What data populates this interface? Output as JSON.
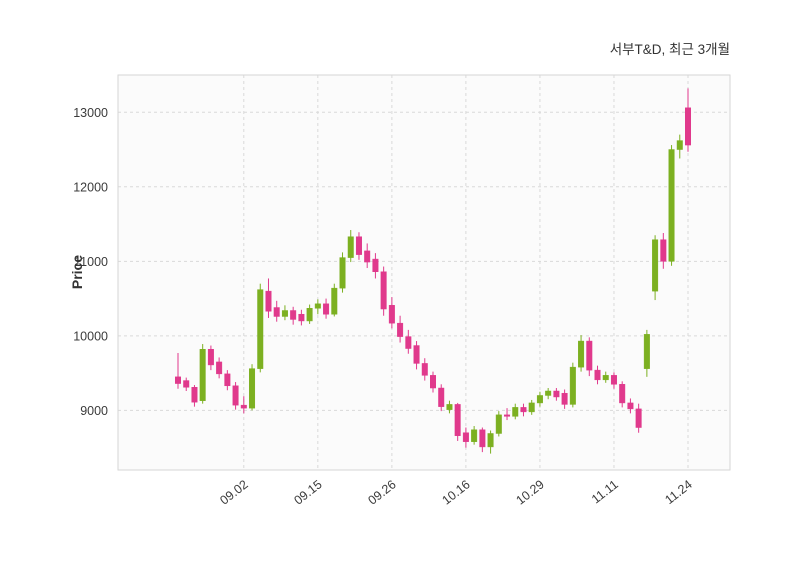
{
  "figure": {
    "background": "#ffffff"
  },
  "chart_data": {
    "type": "candlestick",
    "title": "서부T&D, 최근 3개월",
    "ylabel": "Price",
    "xlabel": "",
    "grid": true,
    "legend": "none",
    "ylim": [
      8200,
      13500
    ],
    "y_ticks": [
      9000,
      10000,
      11000,
      12000,
      13000
    ],
    "x_tick_labels": [
      "09.02",
      "09.15",
      "09.26",
      "10.16",
      "10.29",
      "11.11",
      "11.24"
    ],
    "x_tick_indices": [
      8,
      17,
      26,
      35,
      44,
      53,
      62
    ],
    "up_color": "#7cb021",
    "down_color": "#e0398c",
    "grid_color": "#d9d9d9",
    "frame_color": "#d6d6d6",
    "plot_background": "#fbfbfb",
    "candles_ohlc": [
      [
        9450,
        9770,
        9290,
        9360
      ],
      [
        9400,
        9440,
        9260,
        9310
      ],
      [
        9310,
        9340,
        9050,
        9110
      ],
      [
        9130,
        9890,
        9090,
        9820
      ],
      [
        9820,
        9870,
        9540,
        9610
      ],
      [
        9650,
        9710,
        9430,
        9490
      ],
      [
        9490,
        9540,
        9270,
        9330
      ],
      [
        9330,
        9380,
        9010,
        9070
      ],
      [
        9070,
        9190,
        8960,
        9030
      ],
      [
        9030,
        9620,
        9000,
        9560
      ],
      [
        9560,
        10700,
        9510,
        10620
      ],
      [
        10600,
        10770,
        10240,
        10330
      ],
      [
        10380,
        10470,
        10190,
        10260
      ],
      [
        10260,
        10410,
        10210,
        10340
      ],
      [
        10340,
        10390,
        10150,
        10220
      ],
      [
        10290,
        10350,
        10140,
        10200
      ],
      [
        10200,
        10420,
        10160,
        10370
      ],
      [
        10370,
        10490,
        10290,
        10430
      ],
      [
        10430,
        10500,
        10230,
        10290
      ],
      [
        10290,
        10700,
        10260,
        10640
      ],
      [
        10640,
        11120,
        10580,
        11050
      ],
      [
        11050,
        11420,
        10990,
        11330
      ],
      [
        11330,
        11390,
        11020,
        11090
      ],
      [
        11140,
        11240,
        10910,
        10990
      ],
      [
        11030,
        11110,
        10770,
        10860
      ],
      [
        10860,
        10930,
        10270,
        10360
      ],
      [
        10410,
        10520,
        10100,
        10170
      ],
      [
        10170,
        10270,
        9910,
        9990
      ],
      [
        9990,
        10080,
        9760,
        9830
      ],
      [
        9870,
        9930,
        9550,
        9630
      ],
      [
        9630,
        9700,
        9400,
        9470
      ],
      [
        9470,
        9520,
        9240,
        9300
      ],
      [
        9300,
        9350,
        8990,
        9050
      ],
      [
        9010,
        9130,
        8960,
        9080
      ],
      [
        9080,
        9100,
        8590,
        8660
      ],
      [
        8700,
        8770,
        8500,
        8580
      ],
      [
        8580,
        8790,
        8540,
        8740
      ],
      [
        8740,
        8770,
        8440,
        8510
      ],
      [
        8510,
        8730,
        8420,
        8690
      ],
      [
        8690,
        8990,
        8650,
        8940
      ],
      [
        8940,
        9030,
        8870,
        8920
      ],
      [
        8920,
        9090,
        8880,
        9040
      ],
      [
        9040,
        9090,
        8920,
        8980
      ],
      [
        8980,
        9140,
        8940,
        9100
      ],
      [
        9100,
        9250,
        9050,
        9200
      ],
      [
        9200,
        9300,
        9150,
        9260
      ],
      [
        9260,
        9300,
        9130,
        9180
      ],
      [
        9230,
        9280,
        9020,
        9080
      ],
      [
        9080,
        9640,
        9040,
        9580
      ],
      [
        9580,
        10010,
        9520,
        9930
      ],
      [
        9930,
        9980,
        9460,
        9540
      ],
      [
        9540,
        9600,
        9350,
        9410
      ],
      [
        9410,
        9520,
        9370,
        9470
      ],
      [
        9470,
        9510,
        9290,
        9350
      ],
      [
        9350,
        9390,
        9040,
        9100
      ],
      [
        9100,
        9160,
        8960,
        9020
      ],
      [
        9020,
        9090,
        8700,
        8770
      ],
      [
        9560,
        10080,
        9450,
        10020
      ],
      [
        10600,
        11350,
        10480,
        11290
      ],
      [
        11290,
        11380,
        10900,
        11000
      ],
      [
        11000,
        12560,
        10940,
        12500
      ],
      [
        12500,
        12700,
        12380,
        12620
      ],
      [
        13060,
        13320,
        12470,
        12560
      ]
    ]
  }
}
